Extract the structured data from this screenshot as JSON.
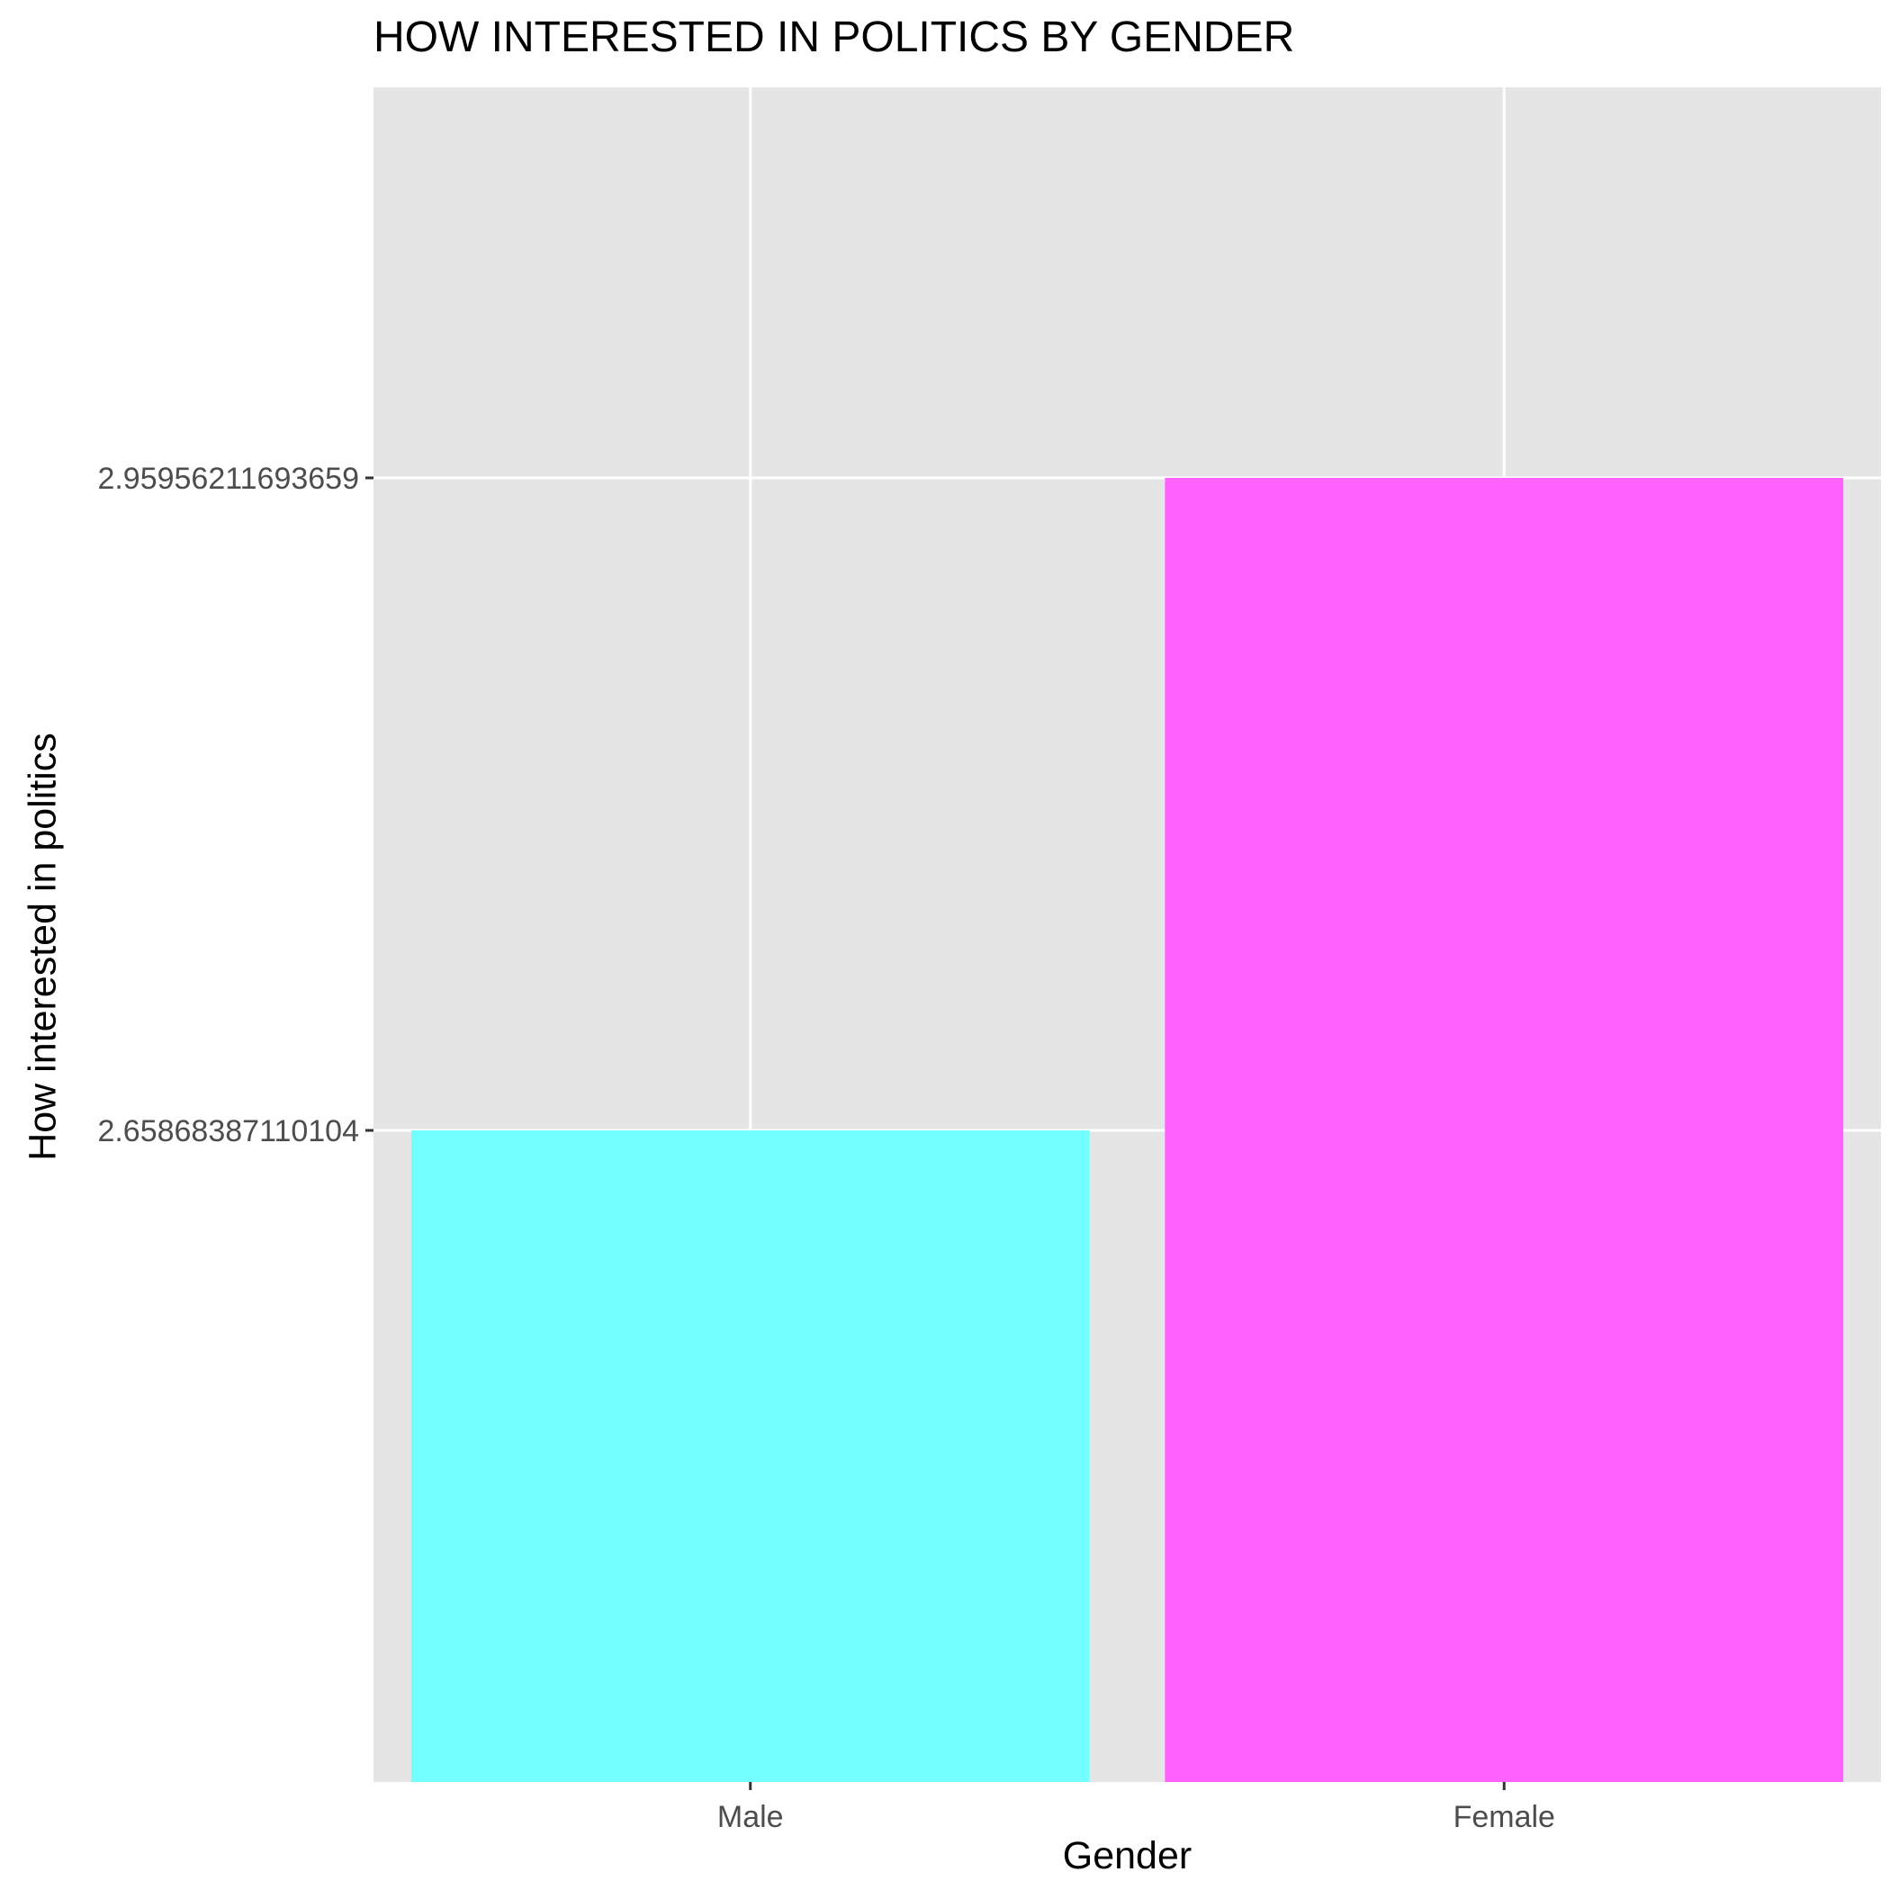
{
  "chart_data": {
    "type": "bar",
    "title": "HOW INTERESTED IN POLITICS BY GENDER",
    "xlabel": "Gender",
    "ylabel": "How interested in politics",
    "categories": [
      "Male",
      "Female"
    ],
    "values": [
      2.65868387110104,
      2.95956211693659
    ],
    "yticks": [
      2.65868387110104,
      2.95956211693659
    ],
    "ytick_labels": [
      "2.65868387110104",
      "2.95956211693659"
    ],
    "bar_colors": [
      "#73FFFF",
      "#FF62FF"
    ],
    "panel_background": "#E5E5E5",
    "grid_color": "#FFFFFF",
    "grid": true,
    "legend": "none"
  }
}
